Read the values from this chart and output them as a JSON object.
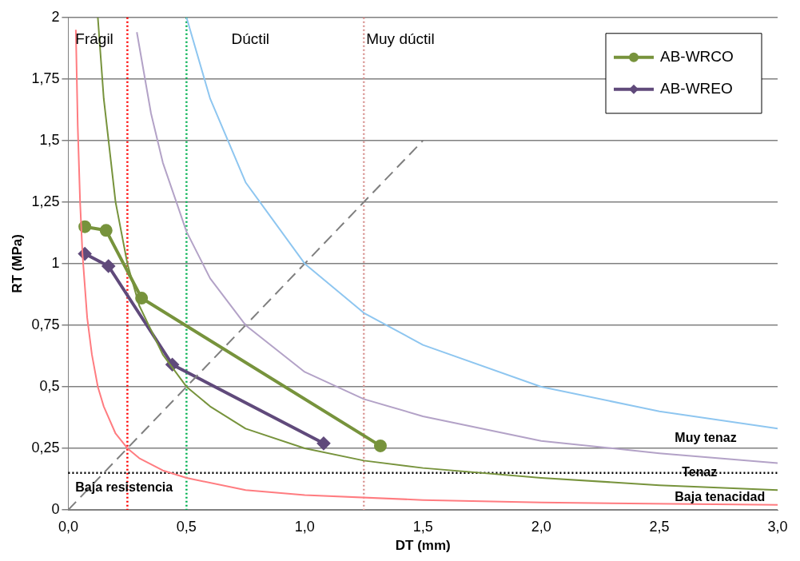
{
  "chart_data": {
    "type": "line",
    "xlabel": "DT (mm)",
    "ylabel": "RT (MPa)",
    "xlim": [
      0,
      3
    ],
    "ylim": [
      0,
      2
    ],
    "xticks": [
      {
        "value": 0,
        "label": "0,0"
      },
      {
        "value": 0.5,
        "label": "0,5"
      },
      {
        "value": 1,
        "label": "1,0"
      },
      {
        "value": 1.5,
        "label": "1,5"
      },
      {
        "value": 2,
        "label": "2,0"
      },
      {
        "value": 2.5,
        "label": "2,5"
      },
      {
        "value": 3,
        "label": "3,0"
      }
    ],
    "yticks": [
      0,
      {
        "value": 0.25,
        "label": "0,25"
      },
      {
        "value": 0.5,
        "label": "0,5"
      },
      {
        "value": 0.75,
        "label": "0,75"
      },
      1,
      {
        "value": 1.25,
        "label": "1,25"
      },
      {
        "value": 1.5,
        "label": "1,5"
      },
      {
        "value": 1.75,
        "label": "1,75"
      },
      2
    ],
    "grid": "y",
    "legend": "top right",
    "series": [
      {
        "color": "#ff7c80",
        "marker": "none",
        "line_style": "solid",
        "x": [
          0.032,
          0.04,
          0.05,
          0.06,
          0.08,
          0.1,
          0.125,
          0.15,
          0.2,
          0.25,
          0.3,
          0.4,
          0.5,
          0.75,
          1,
          1.5,
          2,
          3
        ],
        "values": [
          1.95,
          1.56,
          1.25,
          1.04,
          0.78,
          0.63,
          0.5,
          0.42,
          0.31,
          0.25,
          0.21,
          0.16,
          0.13,
          0.08,
          0.06,
          0.04,
          0.03,
          0.02
        ]
      },
      {
        "color": "#77933c",
        "marker": "none",
        "line_style": "solid",
        "x": [
          0.125,
          0.15,
          0.2,
          0.25,
          0.3,
          0.4,
          0.5,
          0.6,
          0.75,
          1,
          1.25,
          1.5,
          2,
          2.5,
          3
        ],
        "values": [
          2,
          1.67,
          1.25,
          1,
          0.83,
          0.63,
          0.5,
          0.42,
          0.33,
          0.25,
          0.2,
          0.17,
          0.13,
          0.1,
          0.08
        ]
      },
      {
        "color": "#b3a2c7",
        "marker": "none",
        "line_style": "solid",
        "x": [
          0.29,
          0.35,
          0.4,
          0.5,
          0.6,
          0.75,
          1,
          1.25,
          1.5,
          2,
          2.5,
          3
        ],
        "values": [
          1.94,
          1.61,
          1.41,
          1.13,
          0.94,
          0.75,
          0.56,
          0.45,
          0.38,
          0.28,
          0.23,
          0.19
        ]
      },
      {
        "color": "#8ec6f0",
        "marker": "none",
        "line_style": "solid",
        "x": [
          0.5,
          0.6,
          0.75,
          1,
          1.25,
          1.5,
          2,
          2.5,
          3
        ],
        "values": [
          2,
          1.67,
          1.33,
          1,
          0.8,
          0.67,
          0.5,
          0.4,
          0.33
        ]
      },
      {
        "color": "#7f7f7f",
        "marker": "none",
        "line_style": "dashed",
        "x": [
          0,
          1.5
        ],
        "values": [
          0,
          1.5
        ]
      },
      {
        "name": "AB-WRCO",
        "color": "#77933c",
        "marker": "circle",
        "line_style": "solid",
        "x": [
          0.07,
          0.16,
          0.31,
          1.32
        ],
        "values": [
          1.15,
          1.135,
          0.86,
          0.26
        ]
      },
      {
        "name": "AB-WREO",
        "color": "#604a7b",
        "marker": "diamond",
        "line_style": "solid",
        "x": [
          0.07,
          0.17,
          0.44,
          1.08
        ],
        "values": [
          1.04,
          0.99,
          0.59,
          0.27
        ]
      }
    ],
    "ref_lines": [
      {
        "axis": "x",
        "value": 0.25,
        "color": "#ff0000",
        "line_style": "dotted"
      },
      {
        "axis": "x",
        "value": 0.5,
        "color": "#00b050",
        "line_style": "dotted"
      },
      {
        "axis": "x",
        "value": 1.25,
        "color": "#d99694",
        "line_style": "dotted"
      },
      {
        "axis": "y",
        "value": 0.15,
        "color": "#000000",
        "line_style": "dotted"
      }
    ],
    "annotations": [
      "Frágil",
      "Dúctil",
      "Muy dúctil",
      "Muy tenaz",
      "Tenaz",
      "Baja tenacidad",
      "Baja resistencia"
    ]
  }
}
